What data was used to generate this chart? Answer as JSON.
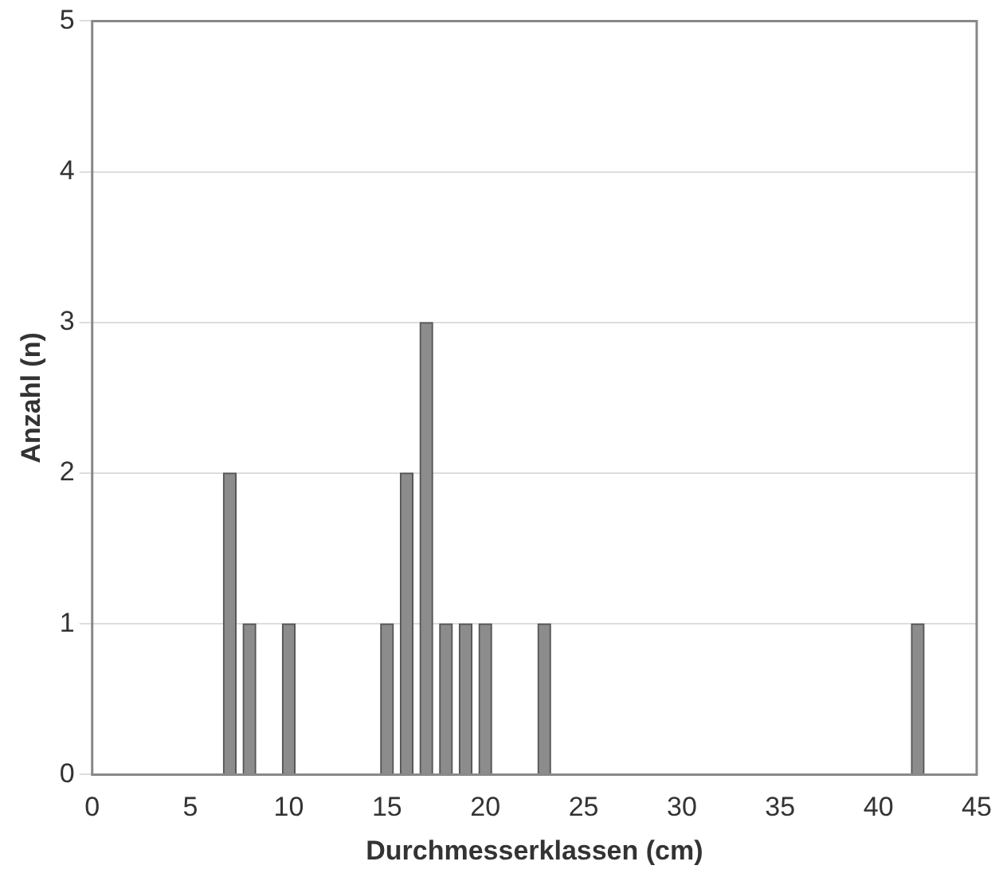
{
  "chart_data": {
    "type": "bar",
    "xlabel": "Durchmesserklassen (cm)",
    "ylabel": "Anzahl (n)",
    "x": [
      7,
      8,
      10,
      15,
      16,
      17,
      18,
      19,
      20,
      23,
      42
    ],
    "values": [
      2,
      1,
      1,
      1,
      2,
      3,
      1,
      1,
      1,
      1,
      1
    ],
    "color": "#8c8c8c",
    "xlim": [
      0,
      45
    ],
    "xticks": [
      0,
      5,
      10,
      15,
      20,
      25,
      30,
      35,
      40,
      45
    ],
    "ylim": [
      0,
      5
    ],
    "yticks": [
      0,
      1,
      2,
      3,
      4,
      5
    ],
    "grid": "y",
    "legend": false
  }
}
